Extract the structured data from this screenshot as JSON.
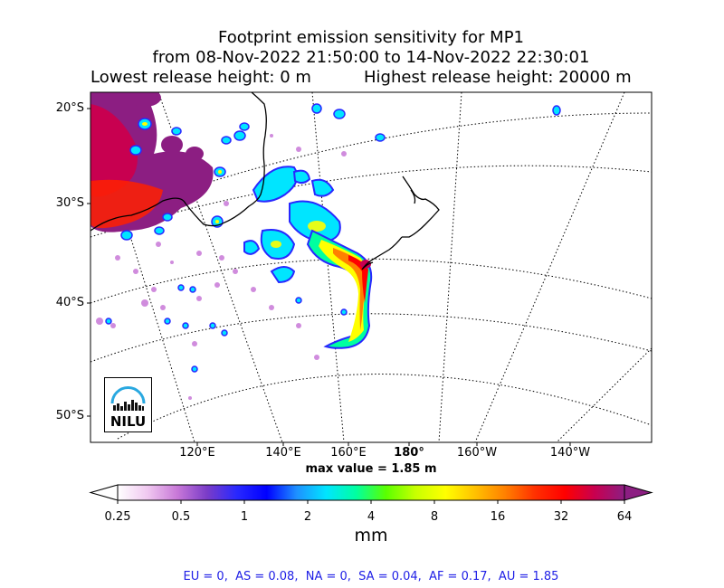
{
  "title": {
    "line1": "Footprint emission sensitivity for MP1",
    "line2": "from 08-Nov-2022 21:50:00 to 14-Nov-2022 22:30:01",
    "lowest": "Lowest release height: 0 m",
    "highest": "Highest release height: 20000 m"
  },
  "lat_labels": [
    "20°S",
    "30°S",
    "40°S",
    "50°S"
  ],
  "lon_labels": [
    "120°E",
    "140°E",
    "160°E",
    "180°",
    "160°W",
    "140°W"
  ],
  "max_value": "max value = 1.85 m",
  "colorbar": {
    "ticks": [
      "0.25",
      "0.5",
      "1",
      "2",
      "4",
      "8",
      "16",
      "32",
      "64"
    ],
    "unit": "mm",
    "colors": [
      "#ffffff",
      "#f0c8f0",
      "#c878d8",
      "#7a3cc8",
      "#2828ff",
      "#0000ff",
      "#1e90ff",
      "#00e5ff",
      "#00ffa0",
      "#5aff00",
      "#c8ff00",
      "#ffff00",
      "#ffc000",
      "#ff8000",
      "#ff3000",
      "#ff0000",
      "#c80050",
      "#8c1e82"
    ]
  },
  "footer": "EU = 0,  AS = 0.08,  NA = 0,  SA = 0.04,  AF = 0.17,  AU = 1.85",
  "logo_text": "NILU"
}
